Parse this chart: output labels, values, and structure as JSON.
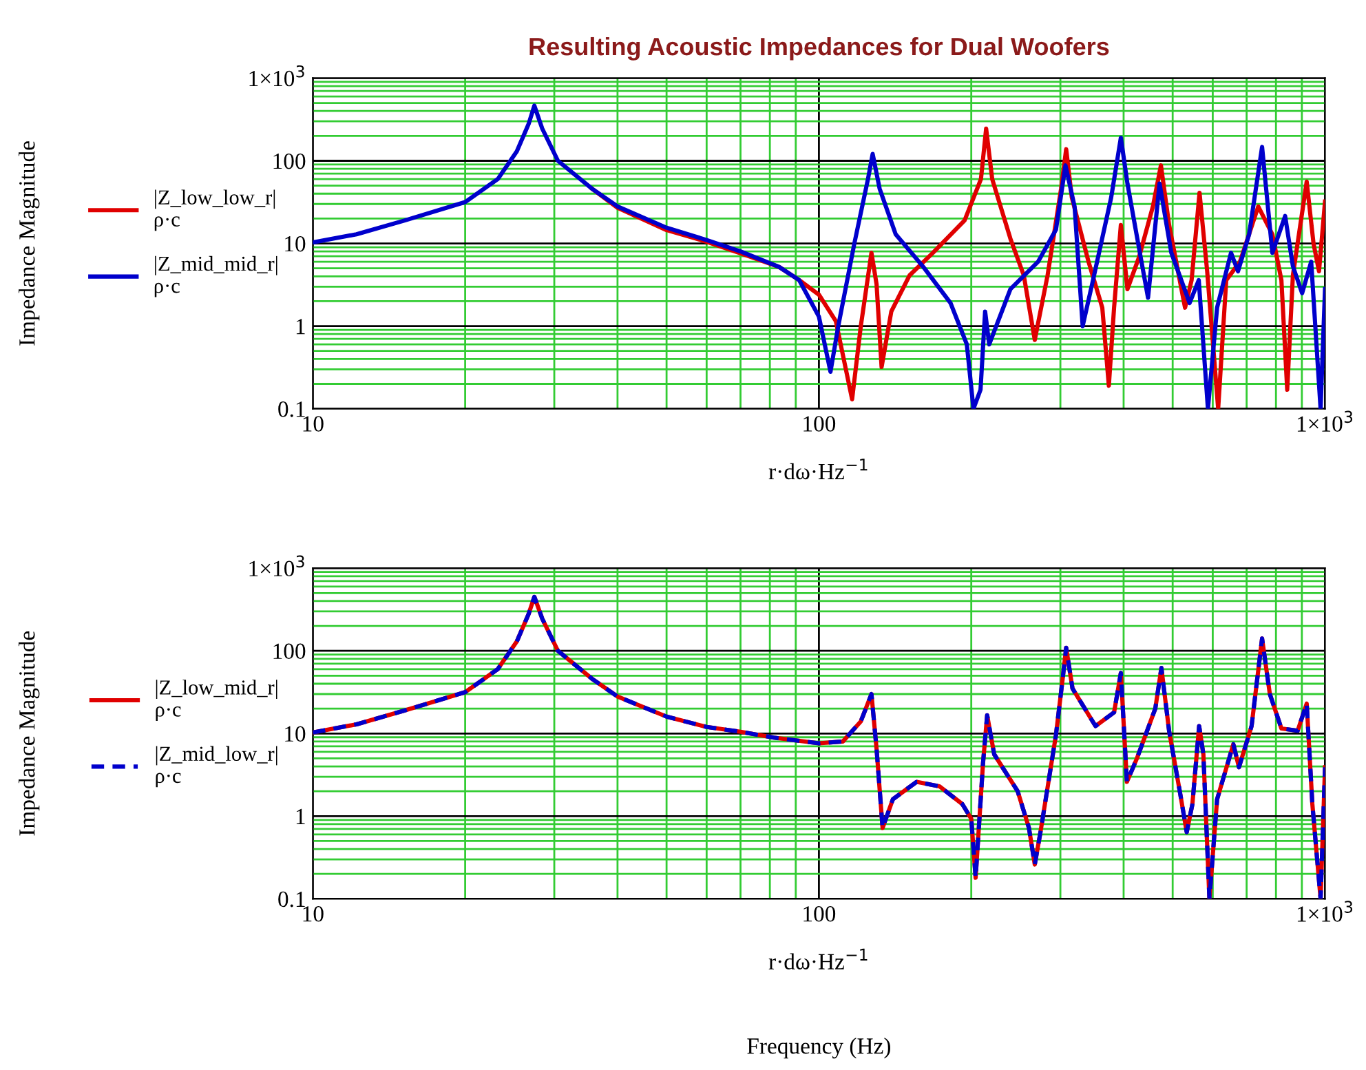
{
  "chart_data": [
    {
      "type": "line",
      "title": "Resulting Acoustic Impedances for Dual Woofers",
      "xlabel": "r·dω·Hz$^{−1}$",
      "ylabel": "Impedance Magnitude",
      "log": "xy",
      "grid": true,
      "legend": "left",
      "marker": "none",
      "xlim": [
        10,
        1000
      ],
      "ylim": [
        0.1,
        1000
      ],
      "xticks": [
        10,
        {
          "value": 20,
          "label": null
        },
        {
          "value": 30,
          "label": null
        },
        {
          "value": 40,
          "label": null
        },
        {
          "value": 50,
          "label": null
        },
        {
          "value": 60,
          "label": null
        },
        {
          "value": 70,
          "label": null
        },
        {
          "value": 80,
          "label": null
        },
        {
          "value": 90,
          "label": null
        },
        100,
        {
          "value": 200,
          "label": null
        },
        {
          "value": 300,
          "label": null
        },
        {
          "value": 400,
          "label": null
        },
        {
          "value": 500,
          "label": null
        },
        {
          "value": 600,
          "label": null
        },
        {
          "value": 700,
          "label": null
        },
        {
          "value": 800,
          "label": null
        },
        {
          "value": 900,
          "label": null
        },
        {
          "value": 1000,
          "label": "1×10$^{3}$"
        }
      ],
      "yticks": [
        0.1,
        {
          "value": 0.2,
          "label": null
        },
        {
          "value": 0.3,
          "label": null
        },
        {
          "value": 0.4,
          "label": null
        },
        {
          "value": 0.5,
          "label": null
        },
        {
          "value": 0.6,
          "label": null
        },
        {
          "value": 0.7,
          "label": null
        },
        {
          "value": 0.8,
          "label": null
        },
        {
          "value": 0.9,
          "label": null
        },
        1,
        {
          "value": 2,
          "label": null
        },
        {
          "value": 3,
          "label": null
        },
        {
          "value": 4,
          "label": null
        },
        {
          "value": 5,
          "label": null
        },
        {
          "value": 6,
          "label": null
        },
        {
          "value": 7,
          "label": null
        },
        {
          "value": 8,
          "label": null
        },
        {
          "value": 9,
          "label": null
        },
        10,
        {
          "value": 20,
          "label": null
        },
        {
          "value": 30,
          "label": null
        },
        {
          "value": 40,
          "label": null
        },
        {
          "value": 50,
          "label": null
        },
        {
          "value": 60,
          "label": null
        },
        {
          "value": 70,
          "label": null
        },
        {
          "value": 80,
          "label": null
        },
        {
          "value": 90,
          "label": null
        },
        100,
        {
          "value": 200,
          "label": null
        },
        {
          "value": 300,
          "label": null
        },
        {
          "value": 400,
          "label": null
        },
        {
          "value": 500,
          "label": null
        },
        {
          "value": 600,
          "label": null
        },
        {
          "value": 700,
          "label": null
        },
        {
          "value": 800,
          "label": null
        },
        {
          "value": 900,
          "label": null
        },
        {
          "value": 1000,
          "label": "1×10$^{3}$"
        }
      ],
      "series": [
        {
          "name": "|Z_low_low_r|\nρ·c",
          "color": "#e00000",
          "line_style": "solid",
          "x": [
            35.6,
            40,
            50,
            60,
            70,
            83.4,
            91.4,
            100,
            108,
            116.3,
            121,
            127,
            130,
            133,
            139,
            151,
            168,
            194,
            209,
            214,
            220,
            239,
            254,
            267,
            283,
            301,
            308,
            316,
            341,
            363,
            374,
            383,
            395,
            407,
            429,
            457,
            474,
            492,
            529,
            545,
            565,
            585,
            615,
            638,
            679,
            738,
            787,
            820,
            842,
            864,
            920,
            949,
            973,
            1000
          ],
          "values": [
            46,
            27,
            14.5,
            10.5,
            7.6,
            5.2,
            3.6,
            2.4,
            1.15,
            0.13,
            1,
            7.7,
            3.2,
            0.32,
            1.5,
            4.1,
            7.7,
            19,
            60,
            245,
            60,
            11.4,
            4.1,
            0.68,
            4.1,
            46,
            138,
            36,
            6,
            1.67,
            0.19,
            1.67,
            16.7,
            2.8,
            6.8,
            28,
            88,
            16.7,
            1.67,
            3.6,
            41,
            4.6,
            0.1,
            3.6,
            6,
            28,
            12.9,
            3.6,
            0.17,
            4.1,
            56,
            10,
            4.6,
            32
          ]
        },
        {
          "name": "|Z_mid_mid_r|\nρ·c",
          "color": "#0000cc",
          "line_style": "solid",
          "x": [
            10,
            12.2,
            15.2,
            20,
            23.2,
            25.3,
            26.7,
            27.4,
            28.4,
            30.5,
            35.6,
            40,
            50,
            60,
            70,
            83.4,
            91.4,
            100,
            105.4,
            109.2,
            117.5,
            125,
            127.7,
            131.8,
            141.8,
            160.8,
            182,
            196,
            202,
            208.6,
            213,
            217,
            239,
            271,
            294,
            307,
            320,
            332,
            348,
            378,
            395,
            407,
            429,
            447,
            471,
            497,
            540,
            563,
            587,
            612,
            652,
            673,
            708,
            751,
            787,
            834,
            864,
            901,
            939,
            980,
            1000
          ],
          "values": [
            10.3,
            12.9,
            19,
            31.6,
            60,
            130,
            280,
            464,
            245,
            100,
            46,
            28,
            15.5,
            11,
            8,
            5.2,
            3.6,
            1.3,
            0.28,
            1,
            10,
            60,
            121,
            46,
            12.9,
            5.2,
            1.9,
            0.6,
            0.1,
            0.17,
            1.5,
            0.6,
            2.8,
            6,
            14.7,
            88,
            28,
            1,
            3.6,
            36,
            190,
            53,
            8.8,
            2.2,
            53,
            7.7,
            1.9,
            3.6,
            0.1,
            1.67,
            7.7,
            4.6,
            12.9,
            147,
            7.7,
            21.5,
            5.3,
            2.5,
            6,
            0.1,
            2.8
          ]
        }
      ]
    },
    {
      "type": "line",
      "xlabel": "r·dω·Hz$^{−1}$",
      "ylabel": "Impedance Magnitude",
      "annotations": [
        "Frequency (Hz)"
      ],
      "log": "xy",
      "grid": true,
      "legend": "left",
      "marker": "none",
      "xlim": [
        10,
        1000
      ],
      "ylim": [
        0.1,
        1000
      ],
      "xticks": [
        10,
        {
          "value": 20,
          "label": null
        },
        {
          "value": 30,
          "label": null
        },
        {
          "value": 40,
          "label": null
        },
        {
          "value": 50,
          "label": null
        },
        {
          "value": 60,
          "label": null
        },
        {
          "value": 70,
          "label": null
        },
        {
          "value": 80,
          "label": null
        },
        {
          "value": 90,
          "label": null
        },
        100,
        {
          "value": 200,
          "label": null
        },
        {
          "value": 300,
          "label": null
        },
        {
          "value": 400,
          "label": null
        },
        {
          "value": 500,
          "label": null
        },
        {
          "value": 600,
          "label": null
        },
        {
          "value": 700,
          "label": null
        },
        {
          "value": 800,
          "label": null
        },
        {
          "value": 900,
          "label": null
        },
        {
          "value": 1000,
          "label": "1×10$^{3}$"
        }
      ],
      "yticks": [
        0.1,
        {
          "value": 0.2,
          "label": null
        },
        {
          "value": 0.3,
          "label": null
        },
        {
          "value": 0.4,
          "label": null
        },
        {
          "value": 0.5,
          "label": null
        },
        {
          "value": 0.6,
          "label": null
        },
        {
          "value": 0.7,
          "label": null
        },
        {
          "value": 0.8,
          "label": null
        },
        {
          "value": 0.9,
          "label": null
        },
        1,
        {
          "value": 2,
          "label": null
        },
        {
          "value": 3,
          "label": null
        },
        {
          "value": 4,
          "label": null
        },
        {
          "value": 5,
          "label": null
        },
        {
          "value": 6,
          "label": null
        },
        {
          "value": 7,
          "label": null
        },
        {
          "value": 8,
          "label": null
        },
        {
          "value": 9,
          "label": null
        },
        10,
        {
          "value": 20,
          "label": null
        },
        {
          "value": 30,
          "label": null
        },
        {
          "value": 40,
          "label": null
        },
        {
          "value": 50,
          "label": null
        },
        {
          "value": 60,
          "label": null
        },
        {
          "value": 70,
          "label": null
        },
        {
          "value": 80,
          "label": null
        },
        {
          "value": 90,
          "label": null
        },
        100,
        {
          "value": 200,
          "label": null
        },
        {
          "value": 300,
          "label": null
        },
        {
          "value": 400,
          "label": null
        },
        {
          "value": 500,
          "label": null
        },
        {
          "value": 600,
          "label": null
        },
        {
          "value": 700,
          "label": null
        },
        {
          "value": 800,
          "label": null
        },
        {
          "value": 900,
          "label": null
        },
        {
          "value": 1000,
          "label": "1×10$^{3}$"
        }
      ],
      "series": [
        {
          "name": "|Z_low_mid_r|\nρ·c",
          "color": "#e00000",
          "line_style": "solid",
          "x": [
            10,
            12.2,
            15.2,
            20,
            23.2,
            25.3,
            26.7,
            27.4,
            28.4,
            30.5,
            35.6,
            40,
            50,
            60,
            70,
            81.5,
            100,
            111.5,
            121,
            127,
            130,
            133.6,
            140,
            156,
            173,
            192,
            200,
            204,
            211,
            215,
            222,
            247,
            260,
            267,
            274,
            294,
            303,
            308,
            317,
            352,
            383,
            395,
            406,
            425,
            462,
            475,
            492,
            518,
            533,
            547,
            564,
            575,
            591,
            612,
            659,
            676,
            716,
            751,
            778,
            820,
            883,
            920,
            944,
            980,
            1000
          ],
          "values": [
            10.3,
            12.9,
            19,
            31.6,
            60,
            130,
            280,
            450,
            245,
            100,
            46,
            28,
            16,
            12,
            10.5,
            8.9,
            7.6,
            8,
            14,
            30,
            6.5,
            0.72,
            1.6,
            2.6,
            2.3,
            1.4,
            0.93,
            0.18,
            4.4,
            16.6,
            5.6,
            2,
            0.72,
            0.26,
            0.64,
            9.6,
            45,
            109,
            35,
            12.3,
            18,
            54,
            2.6,
            5,
            20,
            62,
            10.7,
            1.8,
            0.64,
            1.4,
            12.3,
            5.6,
            0.1,
            1.6,
            7.4,
            3.9,
            12.3,
            141,
            30,
            11.5,
            10.8,
            23,
            1.4,
            0.1,
            3.9
          ]
        },
        {
          "name": "|Z_mid_low_r|\nρ·c",
          "color": "#0000cc",
          "line_style": "dashed",
          "x": [
            10,
            12.2,
            15.2,
            20,
            23.2,
            25.3,
            26.7,
            27.4,
            28.4,
            30.5,
            35.6,
            40,
            50,
            60,
            70,
            81.5,
            100,
            111.5,
            121,
            127,
            130,
            133.6,
            140,
            156,
            173,
            192,
            200,
            204,
            211,
            215,
            222,
            247,
            260,
            267,
            274,
            294,
            303,
            308,
            317,
            352,
            383,
            395,
            406,
            425,
            462,
            475,
            492,
            518,
            533,
            547,
            564,
            575,
            591,
            612,
            659,
            676,
            716,
            751,
            778,
            820,
            883,
            920,
            944,
            980,
            1000
          ],
          "values": [
            10.3,
            12.9,
            19,
            31.6,
            60,
            130,
            280,
            450,
            245,
            100,
            46,
            28,
            16,
            12,
            10.5,
            8.9,
            7.6,
            8,
            14,
            30,
            6.5,
            0.72,
            1.6,
            2.6,
            2.3,
            1.4,
            0.93,
            0.18,
            4.4,
            16.6,
            5.6,
            2,
            0.72,
            0.26,
            0.64,
            9.6,
            45,
            109,
            35,
            12.3,
            18,
            54,
            2.6,
            5,
            20,
            62,
            10.7,
            1.8,
            0.64,
            1.4,
            12.3,
            5.6,
            0.1,
            1.6,
            7.4,
            3.9,
            12.3,
            141,
            30,
            11.5,
            10.8,
            23,
            1.4,
            0.1,
            3.9
          ]
        }
      ]
    }
  ]
}
